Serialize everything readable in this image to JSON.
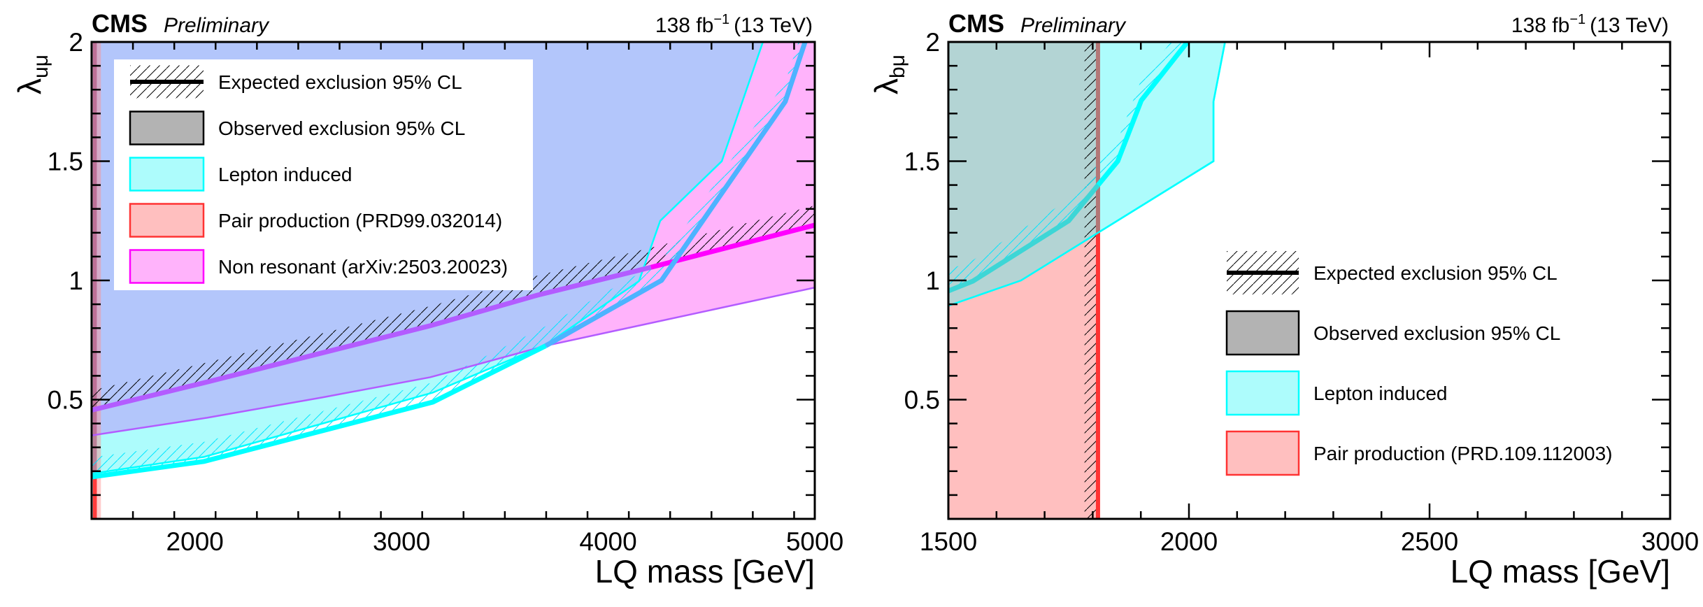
{
  "chart_data": [
    {
      "type": "area",
      "panel": "left",
      "header": {
        "experiment": "CMS",
        "status": "Preliminary",
        "lumi": "138 fb",
        "lumi_exp": "−1",
        "energy": "(13 TeV)"
      },
      "xlabel": "LQ mass [GeV]",
      "ylabel": "λ",
      "ylabel_sub": "uμ",
      "xlim": [
        1500,
        5000
      ],
      "ylim": [
        0,
        2
      ],
      "xticks": [
        2000,
        3000,
        4000,
        5000
      ],
      "xtick_labels": [
        "2000",
        "3000",
        "4000",
        "5000"
      ],
      "yticks": [
        0.5,
        1,
        1.5,
        2
      ],
      "ytick_labels": [
        "0.5",
        "1",
        "1.5",
        "2"
      ],
      "x_minor_step": 200,
      "y_minor_step": 0.1,
      "legend_position": "top-left",
      "legend": [
        {
          "label": "Expected exclusion 95% CL",
          "kind": "expected"
        },
        {
          "label": "Observed exclusion 95% CL",
          "kind": "observed"
        },
        {
          "label": "Lepton induced",
          "kind": "lepton"
        },
        {
          "label": "Pair production (PRD99.032014)",
          "kind": "pair"
        },
        {
          "label": "Non resonant (arXiv:2503.20023)",
          "kind": "nonres"
        }
      ],
      "series": [
        {
          "name": "Lepton induced expected",
          "kind": "lepton-expected",
          "x": [
            1500,
            2044,
            3152,
            3698,
            4258,
            4857,
            4953
          ],
          "y": [
            0.176,
            0.241,
            0.49,
            0.726,
            1.0,
            1.75,
            2.0
          ]
        },
        {
          "name": "Lepton induced observed",
          "kind": "lepton-observed",
          "x": [
            1500,
            2044,
            3152,
            3698,
            4149,
            4252,
            4550,
            4749
          ],
          "y": [
            0.19,
            0.26,
            0.53,
            0.73,
            0.997,
            1.25,
            1.5,
            2.0
          ]
        },
        {
          "name": "Non resonant expected",
          "kind": "nonres-expected",
          "x": [
            1500,
            2059,
            2620,
            3139,
            3657,
            4207,
            5000
          ],
          "y": [
            0.456,
            0.574,
            0.697,
            0.81,
            0.938,
            1.055,
            1.232
          ]
        },
        {
          "name": "Non resonant observed",
          "kind": "nonres-observed",
          "x": [
            1500,
            2059,
            2620,
            3139,
            3698,
            5000
          ],
          "y": [
            0.35,
            0.424,
            0.51,
            0.594,
            0.726,
            0.97
          ]
        },
        {
          "name": "Pair production observed",
          "kind": "pair-observed",
          "x_excluded_max": 1545,
          "x_expected": 1525
        }
      ],
      "colors": {
        "lepton": "#adfcfc",
        "lepton_line": "#00ffff",
        "nonres": "#ffb3fb",
        "nonres_line": "#ff00ff",
        "overlap": "#b3c6fb",
        "nonres_exp_overlap": "#b35cff",
        "lepton_exp_overlap": "#4db3ff",
        "pair": "#ffbfbf",
        "pair_line": "#ff3333",
        "observed": "#b3b3b3"
      }
    },
    {
      "type": "area",
      "panel": "right",
      "header": {
        "experiment": "CMS",
        "status": "Preliminary",
        "lumi": "138 fb",
        "lumi_exp": "−1",
        "energy": "(13 TeV)"
      },
      "xlabel": "LQ mass [GeV]",
      "ylabel": "λ",
      "ylabel_sub": "bμ",
      "xlim": [
        1500,
        3000
      ],
      "ylim": [
        0,
        2
      ],
      "xticks": [
        1500,
        2000,
        2500,
        3000
      ],
      "xtick_labels": [
        "1500",
        "2000",
        "2500",
        "3000"
      ],
      "yticks": [
        0.5,
        1,
        1.5,
        2
      ],
      "ytick_labels": [
        "0.5",
        "1",
        "1.5",
        "2"
      ],
      "x_minor_step": 100,
      "y_minor_step": 0.1,
      "legend_position": "center-right",
      "legend": [
        {
          "label": "Expected exclusion 95% CL",
          "kind": "expected"
        },
        {
          "label": "Observed exclusion 95% CL",
          "kind": "observed"
        },
        {
          "label": "Lepton induced",
          "kind": "lepton"
        },
        {
          "label": "Pair production (PRD.109.112003)",
          "kind": "pair"
        }
      ],
      "series": [
        {
          "name": "Lepton induced expected",
          "kind": "lepton-expected",
          "x": [
            1500,
            1551,
            1750,
            1852,
            1901,
            1997
          ],
          "y": [
            0.956,
            0.997,
            1.25,
            1.5,
            1.755,
            2.0
          ]
        },
        {
          "name": "Lepton induced observed",
          "kind": "lepton-observed",
          "x": [
            1500,
            1651,
            1811,
            2051,
            2051,
            2075
          ],
          "y": [
            0.894,
            1.0,
            1.2,
            1.5,
            1.75,
            2.0
          ]
        },
        {
          "name": "Pair production observed",
          "kind": "pair-observed",
          "x_excluded_max": 1811,
          "x_expected": 1783
        }
      ],
      "colors": {
        "lepton": "#adfcfc",
        "lepton_line": "#00ffff",
        "pair": "#ffbfbf",
        "pair_line": "#ff3333",
        "overlap": "#b3d4d4",
        "observed": "#b3b3b3",
        "pair_edge_overlap": "#b37777"
      }
    }
  ]
}
